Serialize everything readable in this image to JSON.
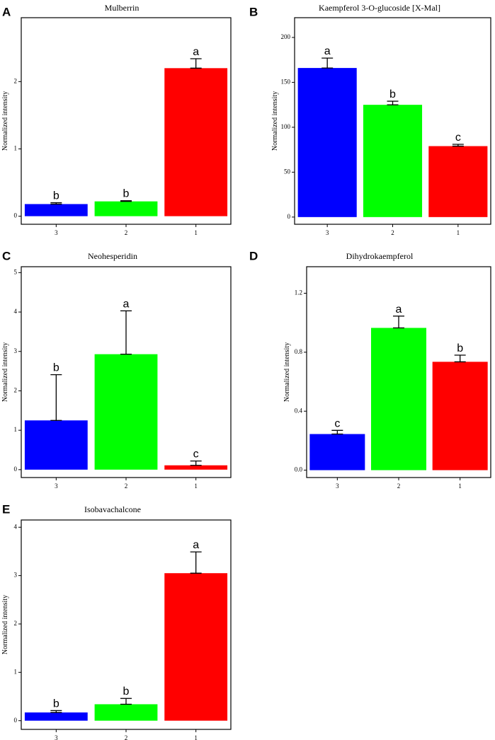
{
  "figure": {
    "colors": {
      "3": "#0000FF",
      "2": "#00FF00",
      "1": "#FF0000"
    }
  },
  "chart_data": [
    {
      "panel": "A",
      "type": "bar",
      "title": "Mulberrin",
      "xlabel": "",
      "ylabel": "Normalized intensity",
      "categories": [
        "3",
        "2",
        "1"
      ],
      "values": [
        0.18,
        0.22,
        2.2
      ],
      "errors": [
        0.02,
        0.01,
        0.14
      ],
      "significance": [
        "b",
        "b",
        "a"
      ],
      "ylim": [
        -0.12,
        2.95
      ],
      "yticks": [
        0,
        1,
        2
      ],
      "ytick_labels": [
        "0",
        "1",
        "2"
      ],
      "grid": false
    },
    {
      "panel": "B",
      "type": "bar",
      "title": "Kaempferol 3-O-glucoside [X-Mal]",
      "xlabel": "",
      "ylabel": "Normalized intensity",
      "categories": [
        "3",
        "2",
        "1"
      ],
      "values": [
        166,
        125,
        79
      ],
      "errors": [
        11,
        4,
        2
      ],
      "significance": [
        "a",
        "b",
        "c"
      ],
      "ylim": [
        -8,
        222
      ],
      "yticks": [
        0,
        50,
        100,
        150,
        200
      ],
      "ytick_labels": [
        "0",
        "50",
        "100",
        "150",
        "200"
      ],
      "grid": false
    },
    {
      "panel": "C",
      "type": "bar",
      "title": "Neohesperidin",
      "xlabel": "",
      "ylabel": "Normalized intensity",
      "categories": [
        "3",
        "2",
        "1"
      ],
      "values": [
        1.25,
        2.93,
        0.11
      ],
      "errors": [
        1.16,
        1.1,
        0.11
      ],
      "significance": [
        "b",
        "a",
        "c"
      ],
      "ylim": [
        -0.2,
        5.15
      ],
      "yticks": [
        0,
        1,
        2,
        3,
        4,
        5
      ],
      "ytick_labels": [
        "0",
        "1",
        "2",
        "3",
        "4",
        "5"
      ],
      "grid": false
    },
    {
      "panel": "D",
      "type": "bar",
      "title": "Dihydrokaempferol",
      "xlabel": "",
      "ylabel": "Normalized intensity",
      "categories": [
        "3",
        "2",
        "1"
      ],
      "values": [
        0.245,
        0.965,
        0.735
      ],
      "errors": [
        0.025,
        0.08,
        0.045
      ],
      "significance": [
        "c",
        "a",
        "b"
      ],
      "ylim": [
        -0.05,
        1.38
      ],
      "yticks": [
        0,
        0.4,
        0.8,
        1.2
      ],
      "ytick_labels": [
        "0.0",
        "0.4",
        "0.8",
        "1.2"
      ],
      "grid": false
    },
    {
      "panel": "E",
      "type": "bar",
      "title": "Isobavachalcone",
      "xlabel": "",
      "ylabel": "Normalized intensity",
      "categories": [
        "3",
        "2",
        "1"
      ],
      "values": [
        0.17,
        0.34,
        3.05
      ],
      "errors": [
        0.04,
        0.12,
        0.44
      ],
      "significance": [
        "b",
        "b",
        "a"
      ],
      "ylim": [
        -0.18,
        4.15
      ],
      "yticks": [
        0,
        1,
        2,
        3,
        4
      ],
      "ytick_labels": [
        "0",
        "1",
        "2",
        "3",
        "4"
      ],
      "grid": false
    }
  ]
}
